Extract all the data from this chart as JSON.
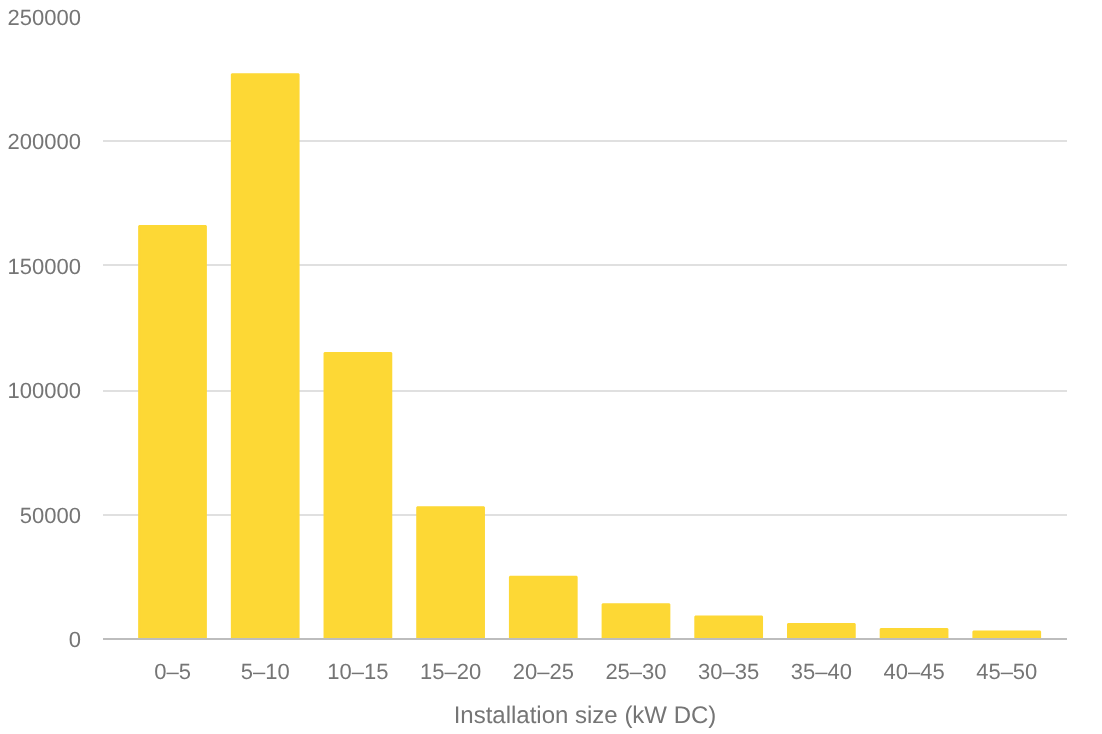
{
  "chart_data": {
    "type": "bar",
    "xlabel": "Installation size (kW DC)",
    "categories": [
      "0–5",
      "5–10",
      "10–15",
      "15–20",
      "20–25",
      "25–30",
      "30–35",
      "35–40",
      "40–45",
      "45–50"
    ],
    "values": [
      166000,
      227000,
      115000,
      53000,
      25000,
      14000,
      9000,
      6000,
      4000,
      3000
    ],
    "color": "#fdd835",
    "ylim": [
      0,
      250000
    ],
    "yticks": [
      0,
      50000,
      100000,
      150000,
      200000,
      250000
    ],
    "grid": "y"
  }
}
